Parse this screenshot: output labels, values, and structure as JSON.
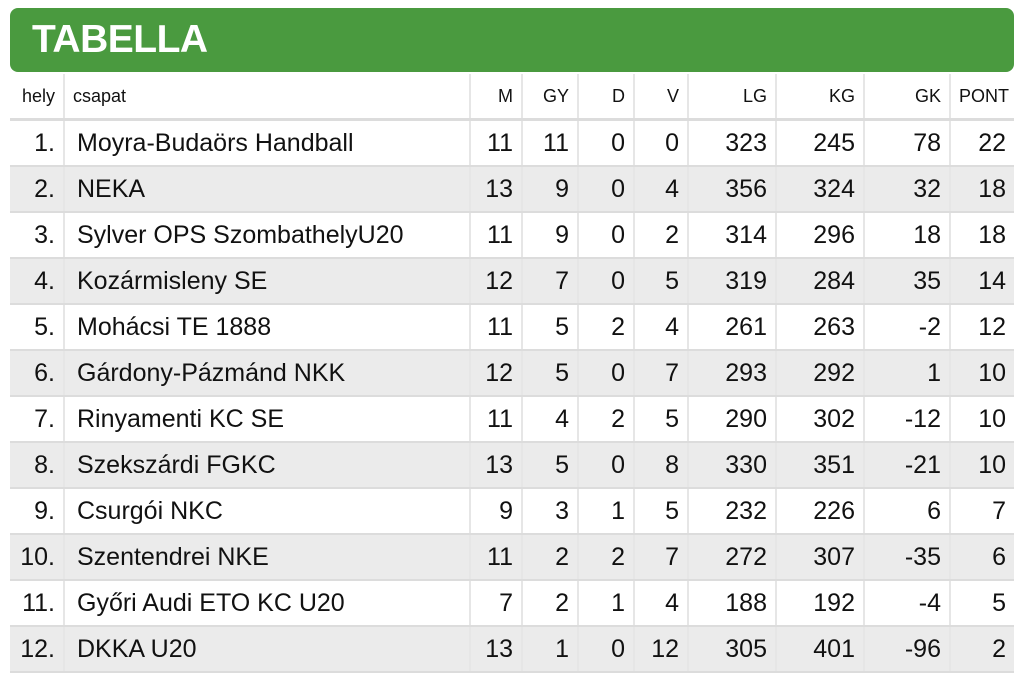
{
  "header": {
    "title": "TABELLA"
  },
  "colors": {
    "header_green": "#4a9a3f",
    "row_alt": "#ebebeb"
  },
  "table": {
    "columns": [
      "hely",
      "csapat",
      "M",
      "GY",
      "D",
      "V",
      "LG",
      "KG",
      "GK",
      "PONT"
    ],
    "rows": [
      [
        "1.",
        "Moyra-Budaörs Handball",
        "11",
        "11",
        "0",
        "0",
        "323",
        "245",
        "78",
        "22"
      ],
      [
        "2.",
        "NEKA",
        "13",
        "9",
        "0",
        "4",
        "356",
        "324",
        "32",
        "18"
      ],
      [
        "3.",
        "Sylver OPS SzombathelyU20",
        "11",
        "9",
        "0",
        "2",
        "314",
        "296",
        "18",
        "18"
      ],
      [
        "4.",
        "Kozármisleny SE",
        "12",
        "7",
        "0",
        "5",
        "319",
        "284",
        "35",
        "14"
      ],
      [
        "5.",
        "Mohácsi TE 1888",
        "11",
        "5",
        "2",
        "4",
        "261",
        "263",
        "-2",
        "12"
      ],
      [
        "6.",
        "Gárdony-Pázmánd NKK",
        "12",
        "5",
        "0",
        "7",
        "293",
        "292",
        "1",
        "10"
      ],
      [
        "7.",
        "Rinyamenti KC SE",
        "11",
        "4",
        "2",
        "5",
        "290",
        "302",
        "-12",
        "10"
      ],
      [
        "8.",
        "Szekszárdi FGKC",
        "13",
        "5",
        "0",
        "8",
        "330",
        "351",
        "-21",
        "10"
      ],
      [
        "9.",
        "Csurgói NKC",
        "9",
        "3",
        "1",
        "5",
        "232",
        "226",
        "6",
        "7"
      ],
      [
        "10.",
        "Szentendrei NKE",
        "11",
        "2",
        "2",
        "7",
        "272",
        "307",
        "-35",
        "6"
      ],
      [
        "11.",
        "Győri Audi ETO KC U20",
        "7",
        "2",
        "1",
        "4",
        "188",
        "192",
        "-4",
        "5"
      ],
      [
        "12.",
        "DKKA U20",
        "13",
        "1",
        "0",
        "12",
        "305",
        "401",
        "-96",
        "2"
      ]
    ]
  }
}
